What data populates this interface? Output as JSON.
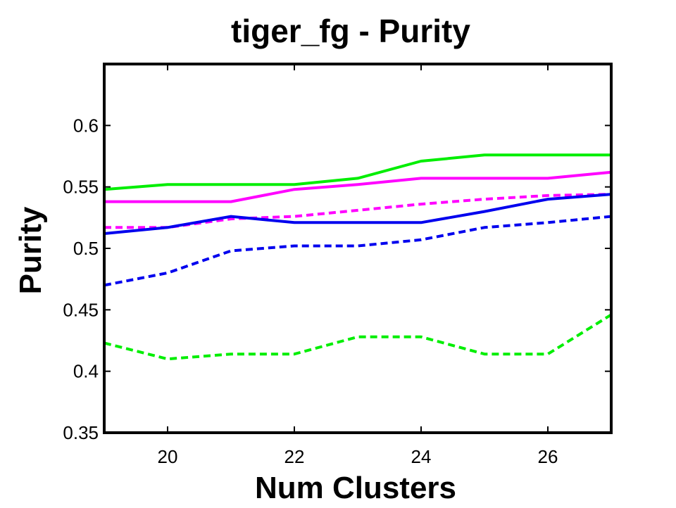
{
  "chart_data": {
    "type": "line",
    "title": "tiger_fg - Purity",
    "xlabel": "Num Clusters",
    "ylabel": "Purity",
    "xlim": [
      19,
      27
    ],
    "ylim": [
      0.35,
      0.65
    ],
    "xticks": [
      20,
      22,
      24,
      26
    ],
    "xtick_labels": [
      "20",
      "22",
      "24",
      "26"
    ],
    "yticks": [
      0.35,
      0.4,
      0.45,
      0.5,
      0.55,
      0.6
    ],
    "ytick_labels": [
      "0.35",
      "0.4",
      "0.45",
      "0.5",
      "0.55",
      "0.6"
    ],
    "grid": false,
    "legend": false,
    "x": [
      19,
      20,
      21,
      22,
      23,
      24,
      25,
      26,
      27
    ],
    "series": [
      {
        "name": "green-solid",
        "color": "#00ee00",
        "dash": "solid",
        "values": [
          0.548,
          0.552,
          0.552,
          0.552,
          0.557,
          0.571,
          0.576,
          0.576,
          0.576
        ]
      },
      {
        "name": "magenta-solid",
        "color": "#ff00ff",
        "dash": "solid",
        "values": [
          0.538,
          0.538,
          0.538,
          0.548,
          0.552,
          0.557,
          0.557,
          0.557,
          0.562
        ]
      },
      {
        "name": "magenta-dashed",
        "color": "#ff00ff",
        "dash": "dashed",
        "values": [
          0.517,
          0.517,
          0.524,
          0.526,
          0.531,
          0.536,
          0.54,
          0.543,
          0.544
        ]
      },
      {
        "name": "blue-solid",
        "color": "#0000ee",
        "dash": "solid",
        "values": [
          0.512,
          0.517,
          0.526,
          0.521,
          0.521,
          0.521,
          0.53,
          0.54,
          0.544
        ]
      },
      {
        "name": "blue-dashed",
        "color": "#0000ee",
        "dash": "dashed",
        "values": [
          0.47,
          0.48,
          0.498,
          0.502,
          0.502,
          0.507,
          0.517,
          0.521,
          0.526
        ]
      },
      {
        "name": "green-dashed",
        "color": "#00ee00",
        "dash": "dashed",
        "values": [
          0.423,
          0.41,
          0.414,
          0.414,
          0.428,
          0.428,
          0.414,
          0.414,
          0.446
        ]
      }
    ]
  }
}
